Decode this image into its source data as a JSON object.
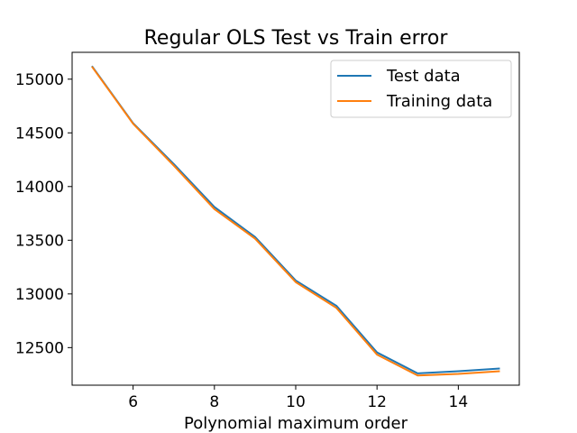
{
  "chart_data": {
    "type": "line",
    "title": "Regular OLS Test vs Train error",
    "xlabel": "Polynomial maximum order",
    "ylabel": "",
    "x": [
      5,
      6,
      7,
      8,
      9,
      10,
      11,
      12,
      13,
      14,
      15
    ],
    "xlim": [
      4.5,
      15.5
    ],
    "ylim": [
      12150,
      15250
    ],
    "xticks": [
      6,
      8,
      10,
      12,
      14
    ],
    "yticks": [
      12500,
      13000,
      13500,
      14000,
      14500,
      15000
    ],
    "grid": false,
    "legend_position": "top-right",
    "series": [
      {
        "name": "Test data",
        "color": "#1f77b4",
        "values": [
          15115,
          14590,
          14210,
          13810,
          13530,
          13125,
          12890,
          12455,
          12260,
          12280,
          12305
        ]
      },
      {
        "name": "Training data",
        "color": "#ff7f0e",
        "values": [
          15110,
          14585,
          14195,
          13790,
          13515,
          13110,
          12870,
          12435,
          12240,
          12255,
          12280
        ]
      }
    ]
  }
}
